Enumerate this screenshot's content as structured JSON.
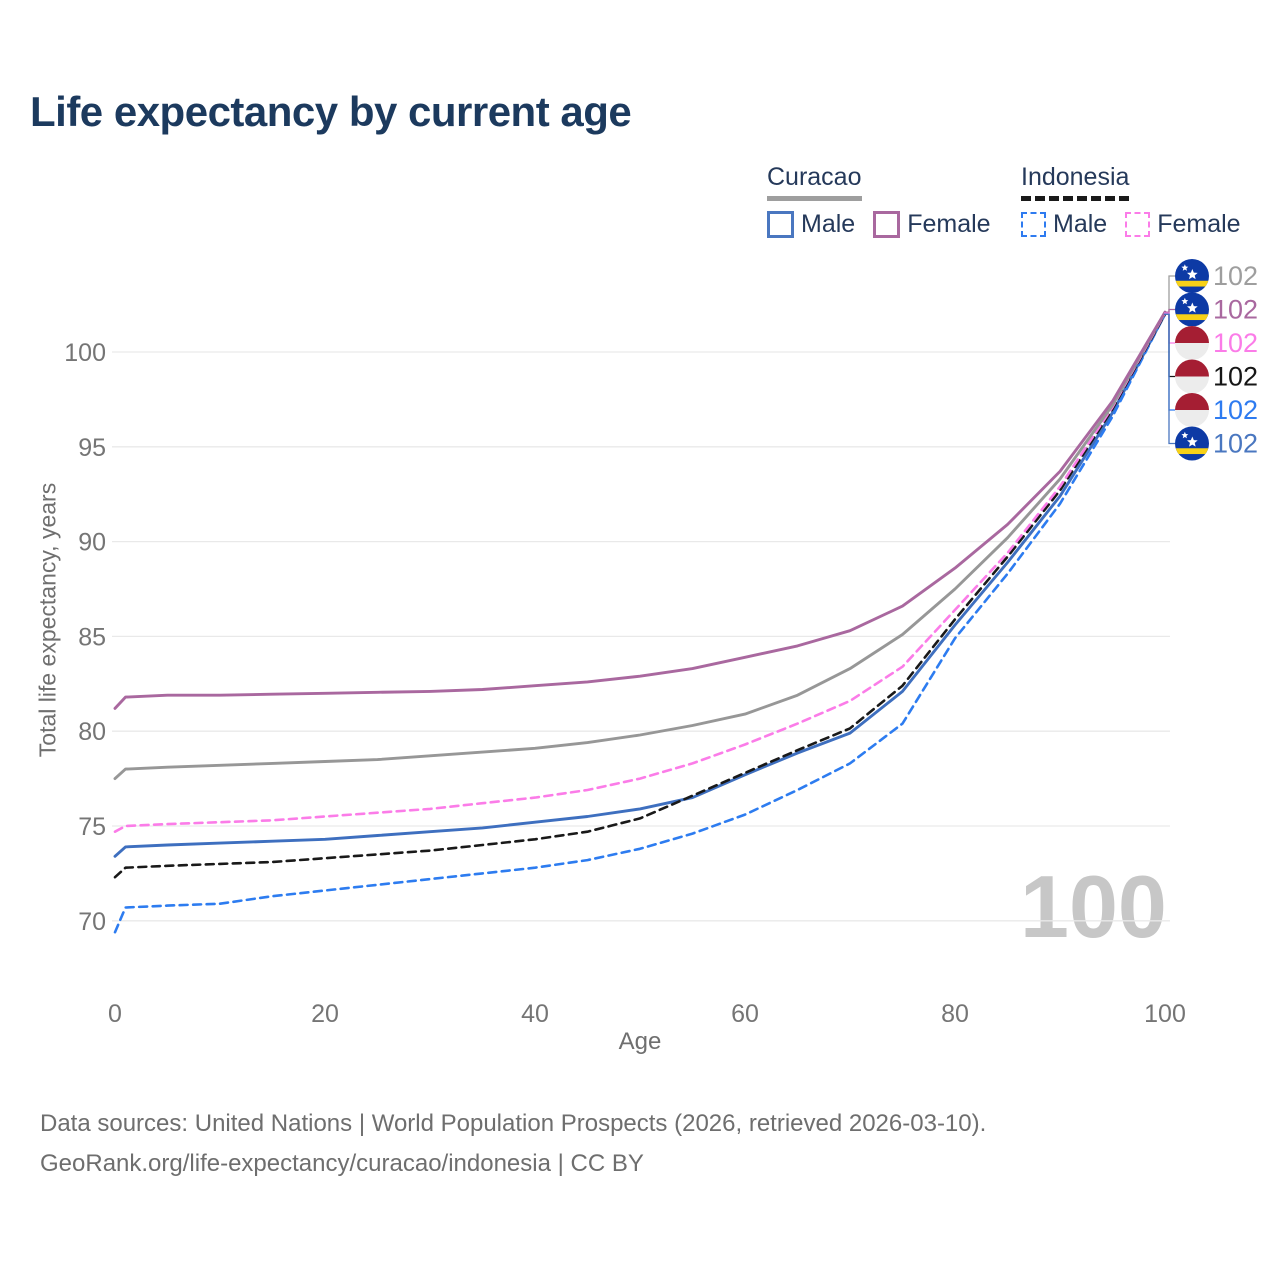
{
  "title": "Life expectancy by current age",
  "legend": {
    "groups": [
      {
        "id": "curacao",
        "label": "Curacao",
        "line_style": "solid",
        "line_color": "#9e9e9e",
        "items": [
          {
            "label": "Male",
            "color": "#4a77c0",
            "dash": false
          },
          {
            "label": "Female",
            "color": "#a9689f",
            "dash": false
          }
        ]
      },
      {
        "id": "indonesia",
        "label": "Indonesia",
        "line_style": "dashed",
        "line_color": "#1a1a1a",
        "items": [
          {
            "label": "Male",
            "color": "#2e7bf0",
            "dash": true
          },
          {
            "label": "Female",
            "color": "#fb7ce8",
            "dash": true
          }
        ]
      }
    ]
  },
  "chart_data": {
    "type": "line",
    "title": "Life expectancy by current age",
    "xlabel": "Age",
    "ylabel": "Total life expectancy, years",
    "xlim": [
      0,
      100
    ],
    "ylim": [
      68,
      103
    ],
    "x_ticks": [
      0,
      20,
      40,
      60,
      80,
      100
    ],
    "y_ticks": [
      70,
      75,
      80,
      85,
      90,
      95,
      100
    ],
    "grid": "horizontal",
    "legend_position": "top-right",
    "watermark": "100",
    "ages": [
      0,
      1,
      5,
      10,
      15,
      20,
      25,
      30,
      35,
      40,
      45,
      50,
      55,
      60,
      65,
      70,
      75,
      80,
      85,
      90,
      95,
      100
    ],
    "series": [
      {
        "id": "curacao-male",
        "name": "Curacao Male",
        "country": "Curacao",
        "sex": "Male",
        "color": "#3e6fbf",
        "dash": false,
        "values": [
          73.4,
          73.9,
          74.0,
          74.1,
          74.2,
          74.3,
          74.5,
          74.7,
          74.9,
          75.2,
          75.5,
          75.9,
          76.5,
          77.7,
          78.85,
          79.9,
          82.1,
          85.6,
          88.9,
          92.4,
          96.8,
          102.0
        ]
      },
      {
        "id": "indonesia-male",
        "name": "Indonesia Male",
        "country": "Indonesia",
        "sex": "Male",
        "color": "#2d7cf0",
        "dash": true,
        "values": [
          69.4,
          70.7,
          70.8,
          70.9,
          71.3,
          71.6,
          71.9,
          72.2,
          72.5,
          72.8,
          73.2,
          73.8,
          74.6,
          75.6,
          76.9,
          78.3,
          80.4,
          84.9,
          88.3,
          92.0,
          96.6,
          102.0
        ]
      },
      {
        "id": "indonesia-both",
        "name": "Indonesia",
        "country": "Indonesia",
        "sex": "Both",
        "color": "#191919",
        "dash": true,
        "values": [
          72.3,
          72.8,
          72.9,
          73.0,
          73.1,
          73.3,
          73.5,
          73.7,
          74.0,
          74.3,
          74.7,
          75.4,
          76.6,
          77.8,
          79.0,
          80.15,
          82.4,
          85.9,
          89.2,
          92.7,
          97.0,
          102.0
        ]
      },
      {
        "id": "indonesia-female",
        "name": "Indonesia Female",
        "country": "Indonesia",
        "sex": "Female",
        "color": "#fb7ce8",
        "dash": true,
        "values": [
          74.7,
          75.0,
          75.1,
          75.2,
          75.3,
          75.5,
          75.7,
          75.9,
          76.2,
          76.5,
          76.9,
          77.5,
          78.3,
          79.3,
          80.4,
          81.6,
          83.4,
          86.4,
          89.4,
          92.9,
          97.1,
          102.05
        ]
      },
      {
        "id": "curacao-both",
        "name": "Curacao",
        "country": "Curacao",
        "sex": "Both",
        "color": "#979797",
        "dash": false,
        "values": [
          77.5,
          78.0,
          78.1,
          78.2,
          78.3,
          78.4,
          78.5,
          78.7,
          78.9,
          79.1,
          79.4,
          79.8,
          80.3,
          80.9,
          81.9,
          83.3,
          85.1,
          87.5,
          90.2,
          93.3,
          97.2,
          102.1
        ]
      },
      {
        "id": "curacao-female",
        "name": "Curacao Female",
        "country": "Curacao",
        "sex": "Female",
        "color": "#a9689f",
        "dash": false,
        "values": [
          81.2,
          81.8,
          81.9,
          81.9,
          81.95,
          82.0,
          82.05,
          82.1,
          82.2,
          82.4,
          82.6,
          82.9,
          83.3,
          83.9,
          84.5,
          85.3,
          86.6,
          88.6,
          90.9,
          93.7,
          97.4,
          102.1
        ]
      }
    ],
    "end_labels": [
      {
        "series": "curacao-both",
        "value": "102",
        "color": "#9e9e9e",
        "flag": "curacao"
      },
      {
        "series": "curacao-female",
        "value": "102",
        "color": "#a9689f",
        "flag": "curacao"
      },
      {
        "series": "indonesia-female",
        "value": "102",
        "color": "#fb7ce8",
        "flag": "indonesia"
      },
      {
        "series": "indonesia-both",
        "value": "102",
        "color": "#161616",
        "flag": "indonesia"
      },
      {
        "series": "indonesia-male",
        "value": "102",
        "color": "#2e7bf0",
        "flag": "indonesia"
      },
      {
        "series": "curacao-male",
        "value": "102",
        "color": "#4a77c0",
        "flag": "curacao"
      }
    ]
  },
  "footer": {
    "line1": "Data sources: United Nations | World Population Prospects (2026, retrieved 2026-03-10).",
    "line2": "GeoRank.org/life-expectancy/curacao/indonesia | CC BY"
  }
}
